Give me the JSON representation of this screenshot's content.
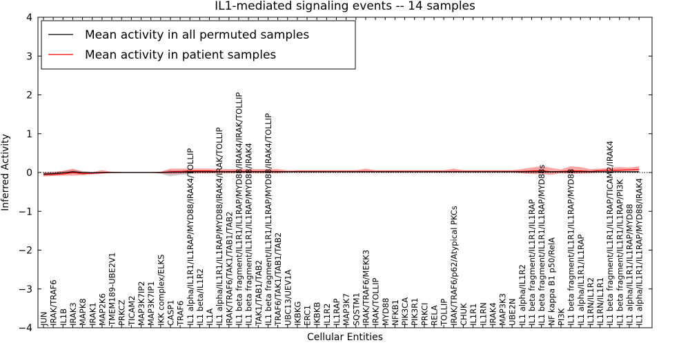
{
  "chart_data": {
    "type": "line",
    "title": "IL1-mediated signaling events -- 14 samples",
    "xlabel": "Cellular Entities",
    "ylabel": "Inferred Activity",
    "ylim": [
      -4,
      4
    ],
    "yticks": [
      -4,
      -3,
      -2,
      -1,
      0,
      1,
      2,
      3,
      4
    ],
    "grid": false,
    "legend_position": "top-left",
    "categories": [
      "JUN",
      "IRAK/TRAF6",
      "IL1B",
      "IRAK3",
      "MAPK8",
      "IRAK1",
      "MAP2K6",
      "TMEM189-UBE2V1",
      "PRKCZ",
      "TICAM2",
      "MAP3K7IP2",
      "MAP3K7IP1",
      "IKK complex/ELKS",
      "CASP1",
      "TRAF6",
      "IL1 alpha/IL1R1/IL1RAP/MYD88/IRAK4/TOLLIP",
      "IL1 beta/IL1R2",
      "IL1A",
      "IL1 alpha/IL1R1/IL1RAP/MYD88/IRAK4/IRAK/TOLLIP",
      "IRAK/TRAF6/TAK1/TAB1/TAB2",
      "IL1 beta fragment/IL1R1/IL1RAP/MYD88/IRAK4/IRAK/TOLLIP",
      "IL1 beta fragment/IL1R1/IL1RAP/MYD88/IRAK4",
      "TAK1/TAB1/TAB2",
      "IL1 beta fragment/IL1R1/IL1RAP/MYD88/IRAK4/TOLLIP",
      "TRAF6/TAK1/TAB1/TAB2",
      "UBC13/UEV1A",
      "IKBKG",
      "ERC1",
      "IKBKB",
      "IL1R2",
      "IL1RAP",
      "MAP3K7",
      "SQSTM1",
      "IRAK/TRAF6/MEKK3",
      "IRAK/TOLLIP",
      "MYD88",
      "NFKB1",
      "PIK3CA",
      "PIK3R1",
      "PRKCI",
      "RELA",
      "TOLLIP",
      "IRAK/TRAF6/p62/Atypical PKCs",
      "CHUK",
      "IL1R1",
      "IL1RN",
      "IRAK4",
      "MAP3K3",
      "UBE2N",
      "IL1 alpha/IL1R2",
      "IL1 beta fragment/IL1R1/IL1RAP",
      "IL1 beta fragment/IL1R1/IL1RAP/MYD88s",
      "NF kappa B1 p50/RelA",
      "PI3K",
      "IL1 beta fragment/IL1R1/IL1RAP/MYD88",
      "IL1 alpha/IL1R1/IL1RAP",
      "IL1RN/IL1R2",
      "IL1RN/IL1R1",
      "IL1 beta fragment/IL1R1/IL1RAP/TICAM2/IRAK4",
      "IL1 beta fragment/IL1R1/IL1RAP/PI3K",
      "IL1 alpha/IL1R1/IL1RAP/MYD88",
      "IL1 alpha/IL1R1/IL1RAP/MYD88/IRAK4"
    ],
    "series": [
      {
        "name": "Mean activity in all permuted samples",
        "color": "#000000",
        "values": [
          -0.04,
          -0.03,
          -0.01,
          0.02,
          0.0,
          -0.01,
          0.0,
          0.0,
          0.0,
          0.0,
          0.0,
          0.0,
          0.0,
          0.01,
          0.01,
          0.02,
          0.02,
          0.02,
          0.02,
          0.02,
          0.02,
          0.02,
          0.02,
          0.02,
          0.02,
          0.02,
          0.02,
          0.02,
          0.02,
          0.02,
          0.02,
          0.02,
          0.02,
          0.02,
          0.02,
          0.02,
          0.02,
          0.02,
          0.02,
          0.02,
          0.02,
          0.02,
          0.02,
          0.02,
          0.02,
          0.02,
          0.02,
          0.02,
          0.02,
          0.02,
          0.02,
          0.02,
          0.02,
          0.02,
          0.02,
          0.02,
          0.02,
          0.02,
          0.02,
          0.02,
          0.02,
          0.02
        ],
        "band_lower": [
          -0.09,
          -0.08,
          -0.04,
          -0.03,
          -0.05,
          -0.03,
          -0.02,
          -0.02,
          -0.01,
          -0.01,
          -0.01,
          -0.01,
          -0.03,
          -0.1,
          -0.06,
          -0.04,
          -0.02,
          -0.02,
          -0.01,
          -0.01,
          -0.01,
          -0.01,
          -0.01,
          -0.01,
          -0.01,
          0.0,
          0.0,
          0.0,
          0.0,
          0.0,
          0.0,
          0.0,
          0.0,
          0.0,
          0.0,
          0.0,
          0.0,
          0.0,
          0.0,
          0.0,
          0.0,
          0.0,
          0.0,
          0.0,
          0.0,
          0.0,
          0.0,
          0.0,
          0.0,
          0.0,
          0.0,
          0.0,
          0.0,
          0.0,
          0.0,
          0.0,
          0.0,
          0.0,
          0.0,
          0.0,
          0.0,
          0.0
        ],
        "band_upper": [
          0.01,
          0.02,
          0.04,
          0.07,
          0.04,
          0.02,
          0.02,
          0.02,
          0.01,
          0.01,
          0.01,
          0.01,
          0.02,
          0.06,
          0.05,
          0.04,
          0.04,
          0.04,
          0.04,
          0.04,
          0.04,
          0.04,
          0.04,
          0.04,
          0.04,
          0.03,
          0.03,
          0.03,
          0.03,
          0.03,
          0.03,
          0.03,
          0.03,
          0.03,
          0.03,
          0.03,
          0.03,
          0.03,
          0.03,
          0.03,
          0.03,
          0.03,
          0.03,
          0.03,
          0.03,
          0.03,
          0.03,
          0.03,
          0.03,
          0.03,
          0.03,
          0.03,
          0.03,
          0.03,
          0.03,
          0.03,
          0.03,
          0.03,
          0.03,
          0.03,
          0.03,
          0.03
        ]
      },
      {
        "name": "Mean activity in patient samples",
        "color": "#ff0000",
        "values": [
          -0.05,
          -0.05,
          -0.04,
          0.0,
          -0.03,
          -0.02,
          -0.01,
          0.0,
          0.0,
          0.0,
          0.0,
          0.0,
          0.0,
          0.02,
          0.03,
          0.04,
          0.04,
          0.04,
          0.03,
          0.03,
          0.03,
          0.03,
          0.03,
          0.03,
          0.03,
          0.02,
          0.03,
          0.03,
          0.03,
          0.03,
          0.03,
          0.03,
          0.03,
          0.03,
          0.03,
          0.03,
          0.03,
          0.03,
          0.03,
          0.03,
          0.03,
          0.03,
          0.03,
          0.03,
          0.03,
          0.03,
          0.03,
          0.03,
          0.03,
          0.03,
          0.04,
          0.05,
          0.02,
          0.03,
          0.04,
          0.04,
          0.03,
          0.05,
          0.06,
          0.06,
          0.07,
          0.08
        ],
        "band_lower": [
          -0.1,
          -0.09,
          -0.08,
          -0.08,
          -0.07,
          -0.05,
          -0.03,
          -0.01,
          -0.01,
          0.0,
          0.0,
          0.0,
          -0.02,
          -0.04,
          -0.03,
          -0.02,
          -0.02,
          -0.02,
          -0.02,
          -0.02,
          -0.02,
          -0.02,
          -0.02,
          -0.02,
          -0.02,
          0.0,
          0.0,
          0.0,
          0.0,
          0.0,
          0.0,
          0.0,
          0.0,
          0.0,
          0.0,
          0.0,
          0.0,
          0.0,
          0.0,
          0.0,
          0.0,
          0.0,
          0.0,
          0.0,
          0.0,
          0.0,
          0.0,
          0.0,
          0.0,
          -0.02,
          -0.04,
          -0.04,
          -0.06,
          -0.02,
          -0.03,
          -0.03,
          -0.02,
          0.0,
          0.01,
          0.02,
          0.03,
          0.04
        ],
        "band_upper": [
          0.0,
          0.01,
          0.04,
          0.1,
          0.02,
          0.01,
          0.06,
          0.02,
          0.01,
          0.01,
          0.01,
          0.01,
          0.02,
          0.1,
          0.1,
          0.1,
          0.1,
          0.1,
          0.09,
          0.09,
          0.09,
          0.09,
          0.09,
          0.09,
          0.09,
          0.06,
          0.06,
          0.06,
          0.06,
          0.06,
          0.06,
          0.06,
          0.06,
          0.1,
          0.06,
          0.06,
          0.06,
          0.06,
          0.06,
          0.06,
          0.06,
          0.06,
          0.1,
          0.06,
          0.06,
          0.06,
          0.06,
          0.06,
          0.06,
          0.09,
          0.13,
          0.16,
          0.12,
          0.08,
          0.16,
          0.14,
          0.09,
          0.1,
          0.12,
          0.14,
          0.13,
          0.16
        ]
      }
    ]
  }
}
